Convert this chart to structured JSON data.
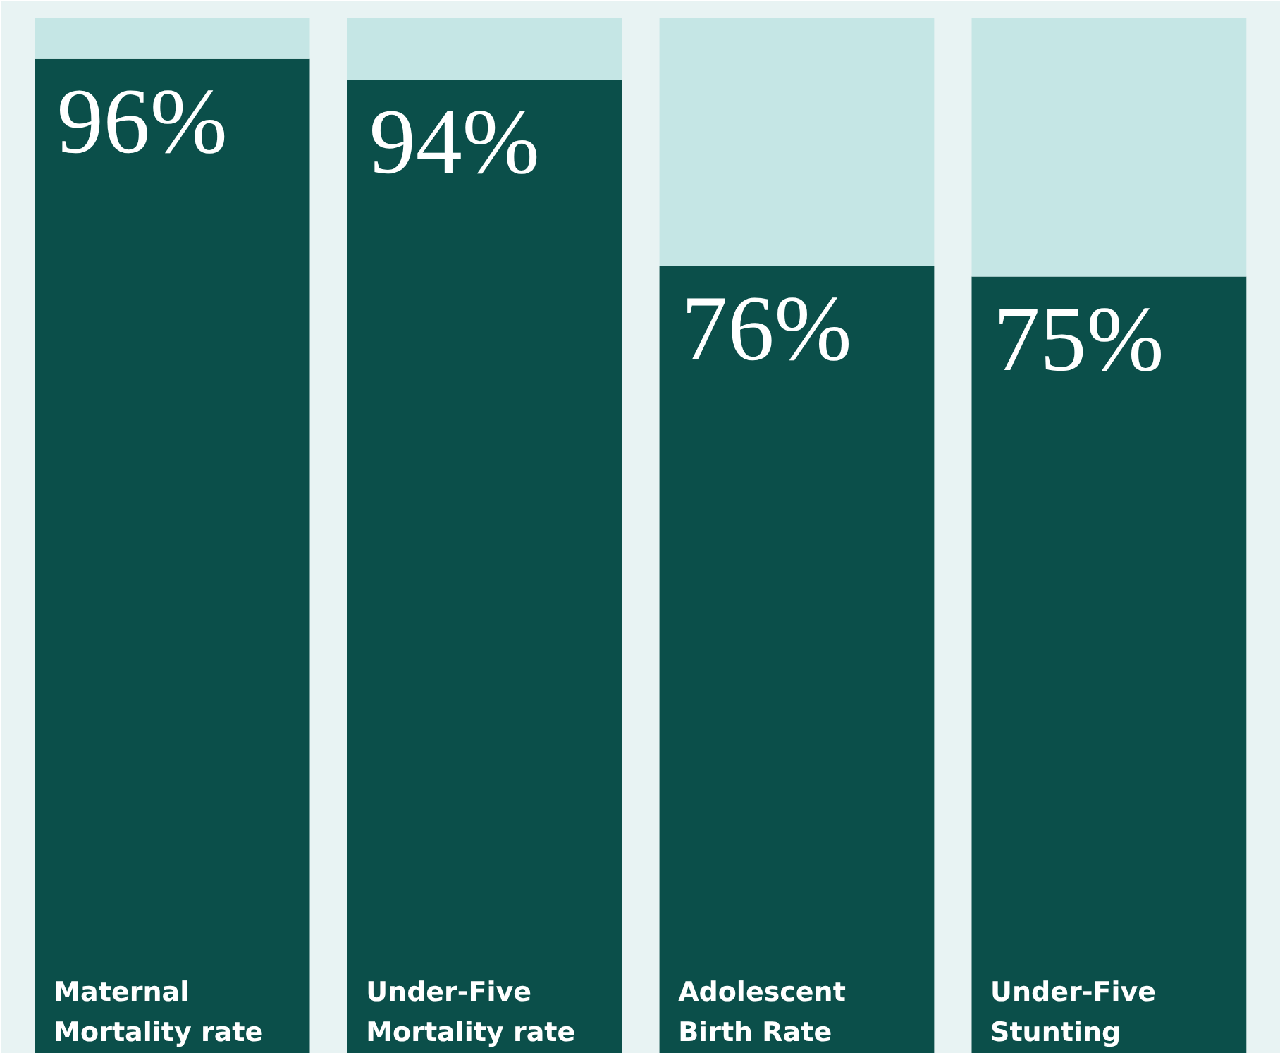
{
  "chart_data": {
    "type": "bar",
    "stacked": true,
    "categories": [
      "Maternal Mortality rate",
      "Under-Five Mortality rate",
      "Adolescent Birth Rate",
      "Under-Five Stunting"
    ],
    "ylim": [
      0,
      100
    ],
    "tick_labels": false,
    "grid": false,
    "series": [
      {
        "color": "#0b4f4a",
        "values": [
          96,
          94,
          76,
          75
        ],
        "value_labels": [
          "96%",
          "94%",
          "76%",
          "75%"
        ]
      },
      {
        "color": "#c5e6e5",
        "values": [
          4,
          6,
          24,
          25
        ]
      }
    ]
  }
}
